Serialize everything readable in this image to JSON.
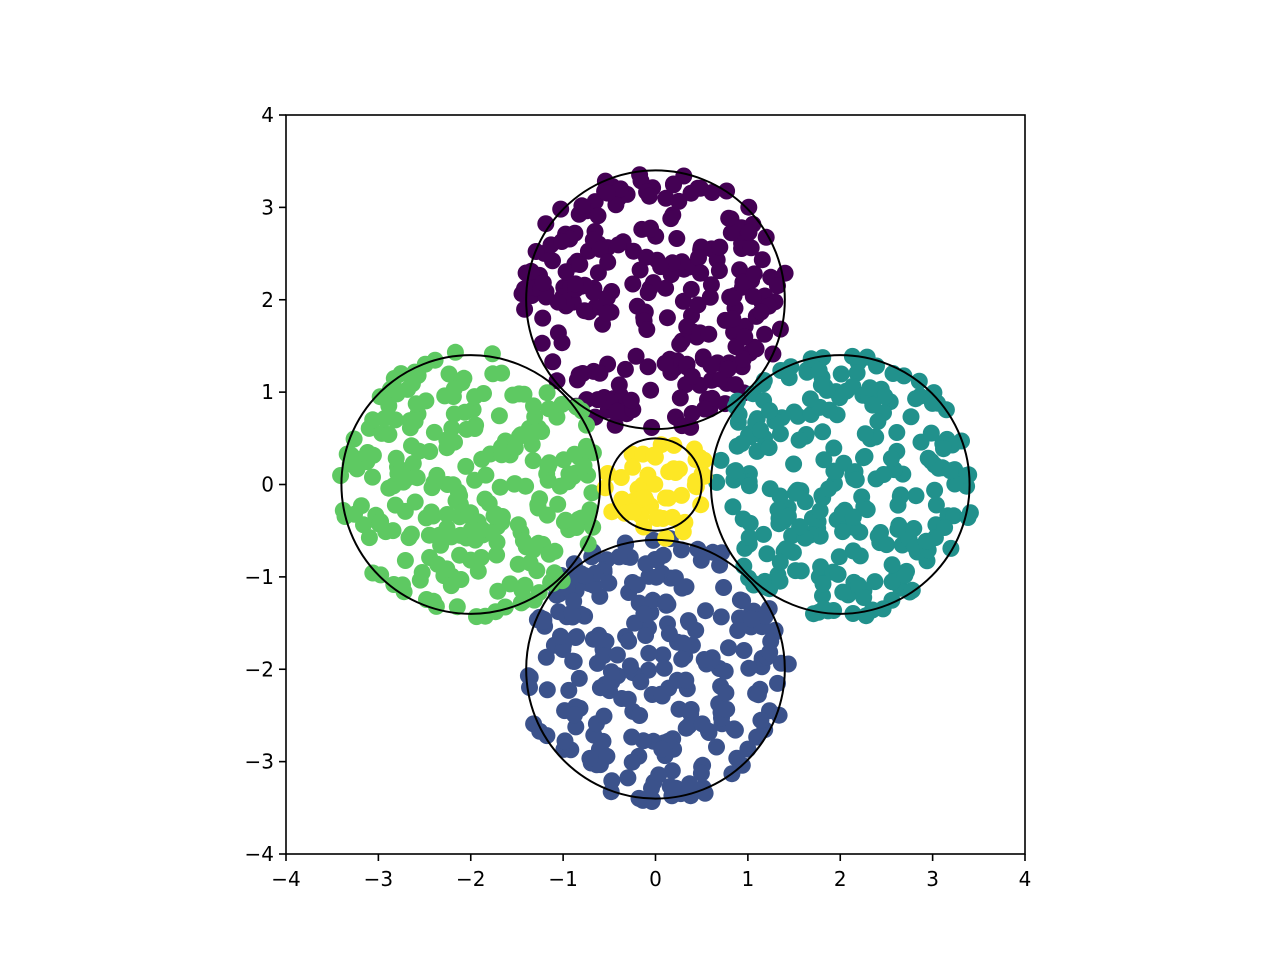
{
  "chart_data": {
    "type": "scatter",
    "title": "",
    "xlabel": "",
    "ylabel": "",
    "xlim": [
      -4,
      4
    ],
    "ylim": [
      -4,
      4
    ],
    "grid": false,
    "legend": "none",
    "x_ticks": [
      -4,
      -3,
      -2,
      -1,
      0,
      1,
      2,
      3,
      4
    ],
    "y_ticks": [
      -4,
      -3,
      -2,
      -1,
      0,
      1,
      2,
      3,
      4
    ],
    "x_tick_labels": [
      "−4",
      "−3",
      "−2",
      "−1",
      "0",
      "1",
      "2",
      "3",
      "4"
    ],
    "y_tick_labels": [
      "−4",
      "−3",
      "−2",
      "−1",
      "0",
      "1",
      "2",
      "3",
      "4"
    ],
    "circles": [
      {
        "cx": 0,
        "cy": 2,
        "r": 1.4
      },
      {
        "cx": 2,
        "cy": 0,
        "r": 1.4
      },
      {
        "cx": 0,
        "cy": -2,
        "r": 1.4
      },
      {
        "cx": -2,
        "cy": 0,
        "r": 1.4
      },
      {
        "cx": 0,
        "cy": 0,
        "r": 0.5
      }
    ],
    "clusters": [
      {
        "color": "#440154",
        "center": [
          0,
          2
        ],
        "radius": 1.45,
        "count": 250
      },
      {
        "color": "#21918c",
        "center": [
          2,
          0
        ],
        "radius": 1.45,
        "count": 250
      },
      {
        "color": "#3b528b",
        "center": [
          0,
          -2
        ],
        "radius": 1.45,
        "count": 250
      },
      {
        "color": "#5ec962",
        "center": [
          -2,
          0
        ],
        "radius": 1.45,
        "count": 250
      },
      {
        "color": "#fde725",
        "center": [
          0,
          0
        ],
        "radius": 0.6,
        "count": 50
      }
    ]
  }
}
